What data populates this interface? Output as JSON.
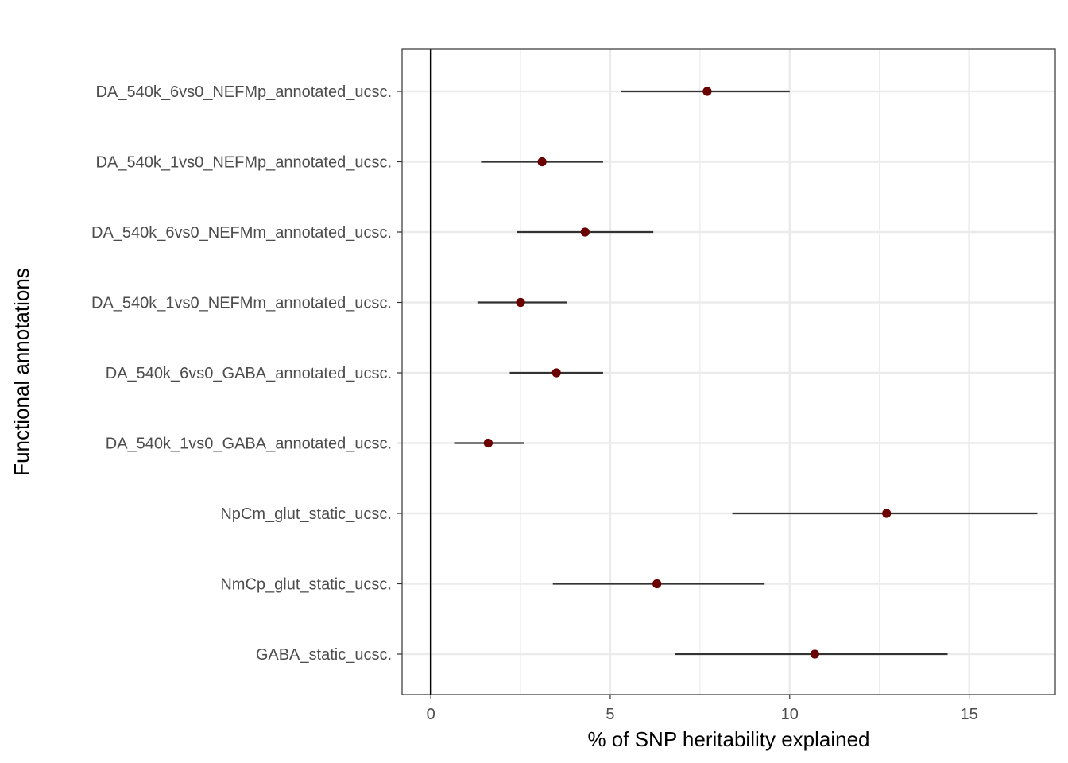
{
  "chart_data": {
    "type": "scatter",
    "subtype": "point-range",
    "title": "",
    "xlabel": "% of SNP heritability explained",
    "ylabel": "Functional annotations",
    "xlim": [
      -0.8,
      17.4
    ],
    "xticks": [
      0,
      5,
      10,
      15
    ],
    "x_tick_labels": [
      "0",
      "5",
      "10",
      "15"
    ],
    "grid": true,
    "legend": "none",
    "reference_line_x": 0,
    "categories": [
      "DA_540k_6vs0_NEFMp_annotated_ucsc.",
      "DA_540k_1vs0_NEFMp_annotated_ucsc.",
      "DA_540k_6vs0_NEFMm_annotated_ucsc.",
      "DA_540k_1vs0_NEFMm_annotated_ucsc.",
      "DA_540k_6vs0_GABA_annotated_ucsc.",
      "DA_540k_1vs0_GABA_annotated_ucsc.",
      "NpCm_glut_static_ucsc.",
      "NmCp_glut_static_ucsc.",
      "GABA_static_ucsc."
    ],
    "values": [
      7.7,
      3.1,
      4.3,
      2.5,
      3.5,
      1.6,
      12.7,
      6.3,
      10.7
    ],
    "lower": [
      5.3,
      1.4,
      2.4,
      1.3,
      2.2,
      0.65,
      8.4,
      3.4,
      6.8
    ],
    "upper": [
      10.0,
      4.8,
      6.2,
      3.8,
      4.8,
      2.6,
      16.9,
      9.3,
      14.4
    ],
    "colors": {
      "point": "#6b0000",
      "errorbar": "#333333",
      "grid": "#ebebeb",
      "panel_border": "#333333",
      "reference_line": "#000000",
      "tick_label": "#4d4d4d"
    }
  }
}
